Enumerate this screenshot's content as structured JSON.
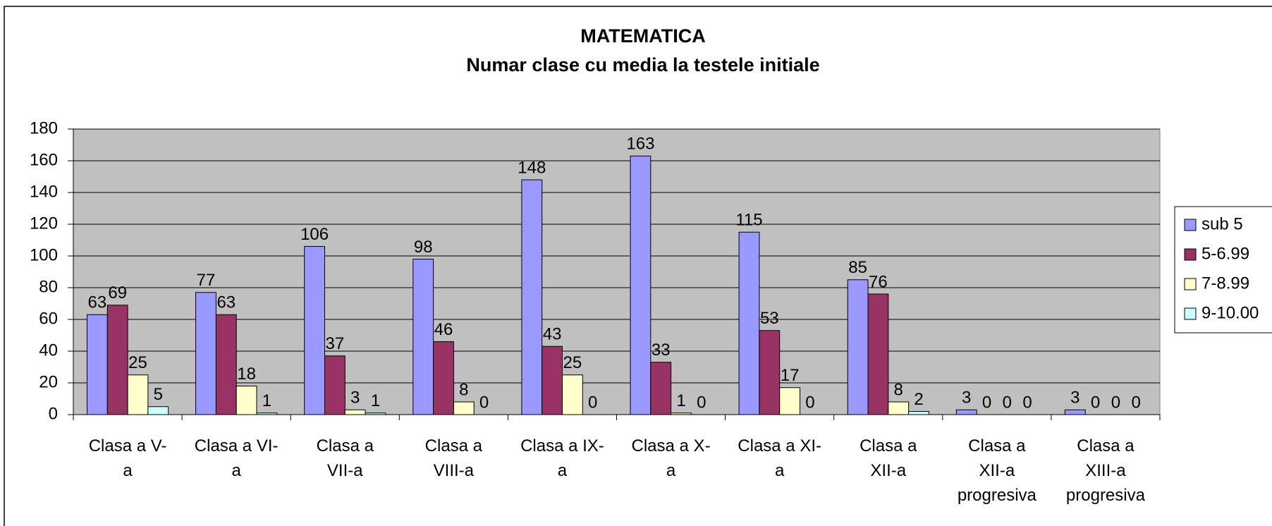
{
  "chart_data": {
    "type": "bar",
    "title": "MATEMATICA",
    "subtitle": "Numar clase cu media la testele initiale",
    "categories": [
      "Clasa a V-a",
      "Clasa a VI-a",
      "Clasa a VII-a",
      "Clasa a VIII-a",
      "Clasa a IX-a",
      "Clasa a X-a",
      "Clasa a XI-a",
      "Clasa a XII-a",
      "Clasa a XII-a progresiva",
      "Clasa a XIII-a progresiva"
    ],
    "series": [
      {
        "name": "sub 5",
        "color": "#9999ff",
        "values": [
          63,
          77,
          106,
          98,
          148,
          163,
          115,
          85,
          3,
          3
        ]
      },
      {
        "name": "5-6.99",
        "color": "#993366",
        "values": [
          69,
          63,
          37,
          46,
          43,
          33,
          53,
          76,
          0,
          0
        ]
      },
      {
        "name": "7-8.99",
        "color": "#ffffcc",
        "values": [
          25,
          18,
          3,
          8,
          25,
          1,
          17,
          8,
          0,
          0
        ]
      },
      {
        "name": "9-10.00",
        "color": "#ccffff",
        "values": [
          5,
          1,
          1,
          0,
          0,
          0,
          0,
          2,
          0,
          0
        ]
      }
    ],
    "ylim": [
      0,
      180
    ],
    "yticks": [
      0,
      20,
      40,
      60,
      80,
      100,
      120,
      140,
      160,
      180
    ],
    "grid": true,
    "legend": "right",
    "plot_background": "#c0c0c0"
  }
}
